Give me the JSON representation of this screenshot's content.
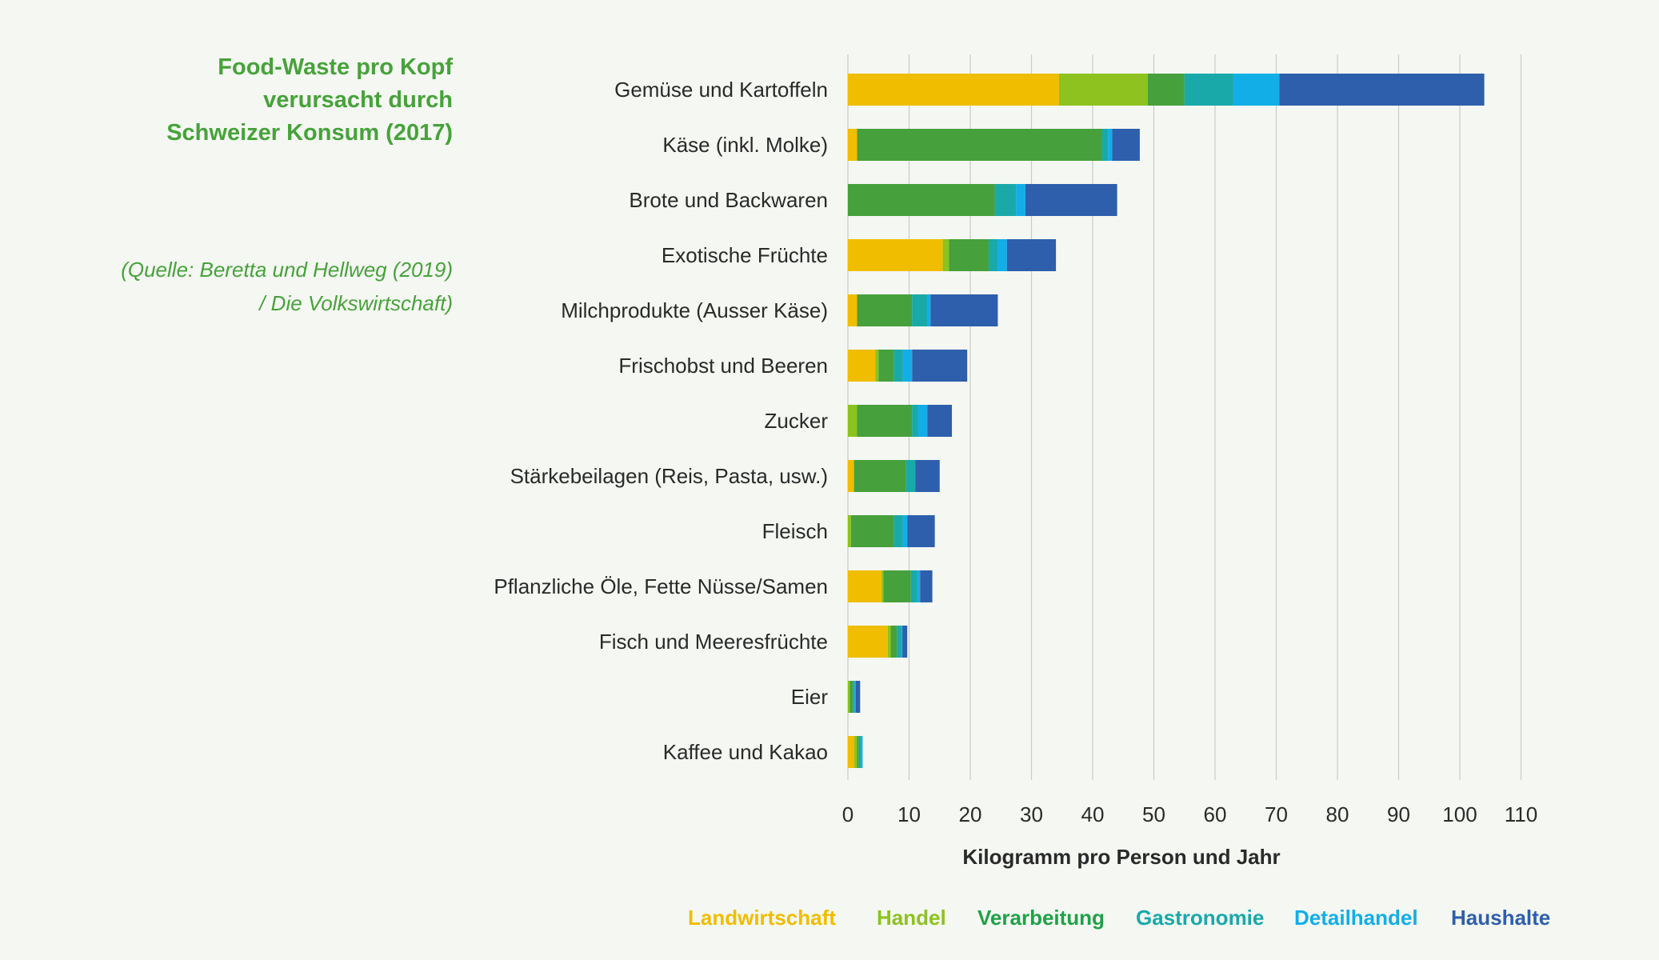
{
  "sidebar": {
    "title": "Food-Waste pro Kopf verursacht durch Schweizer Konsum (2017)",
    "source": "(Quelle: Beretta und Hellweg (2019) / Die Volkswirtschaft)"
  },
  "chart_data": {
    "type": "bar",
    "orientation": "horizontal",
    "stacked": true,
    "categories": [
      "Gemüse und Kartoffeln",
      "Käse (inkl. Molke)",
      "Brote und Backwaren",
      "Exotische Früchte",
      "Milchprodukte (Ausser Käse)",
      "Frischobst und Beeren",
      "Zucker",
      "Stärkebeilagen (Reis, Pasta, usw.)",
      "Fleisch",
      "Pflanzliche Öle, Fette Nüsse/Samen",
      "Fisch und Meeresfrüchte",
      "Eier",
      "Kaffee und Kakao"
    ],
    "series": [
      {
        "name": "Landwirtschaft",
        "color": "#f0bd00",
        "values": [
          34.5,
          1.5,
          0,
          15.5,
          1.5,
          4.5,
          0,
          1,
          0,
          5.5,
          6.5,
          0,
          1
        ]
      },
      {
        "name": "Handel",
        "color": "#8dc21f",
        "values": [
          14.5,
          0,
          0,
          1,
          0,
          0.5,
          1.5,
          0,
          0.5,
          0.3,
          0.5,
          0.3,
          0.5
        ]
      },
      {
        "name": "Verarbeitung",
        "color": "#46a03c",
        "values": [
          6,
          40,
          24,
          6.5,
          9,
          2.5,
          9,
          8.5,
          7,
          4.5,
          1,
          0.5,
          0.3
        ]
      },
      {
        "name": "Gastronomie",
        "color": "#19a9a9",
        "values": [
          8,
          1,
          3.5,
          1.5,
          2.5,
          1.5,
          1,
          1.5,
          1.5,
          1,
          0.7,
          0.3,
          0.3
        ]
      },
      {
        "name": "Detailhandel",
        "color": "#12aee8",
        "values": [
          7.5,
          0.7,
          1.5,
          1.5,
          0.5,
          1.5,
          1.5,
          0,
          0.7,
          0.5,
          0.2,
          0.2,
          0.3
        ]
      },
      {
        "name": "Haushalte",
        "color": "#2e5fac",
        "values": [
          33.5,
          4.5,
          15,
          8,
          11,
          9,
          4,
          4,
          4.5,
          2,
          0.8,
          0.7,
          0
        ]
      }
    ],
    "xlabel": "Kilogramm pro Person und Jahr",
    "xlim": [
      0,
      110
    ],
    "xticks": [
      0,
      10,
      20,
      30,
      40,
      50,
      60,
      70,
      80,
      90,
      100,
      110
    ],
    "grid": true,
    "legend_position": "bottom"
  }
}
